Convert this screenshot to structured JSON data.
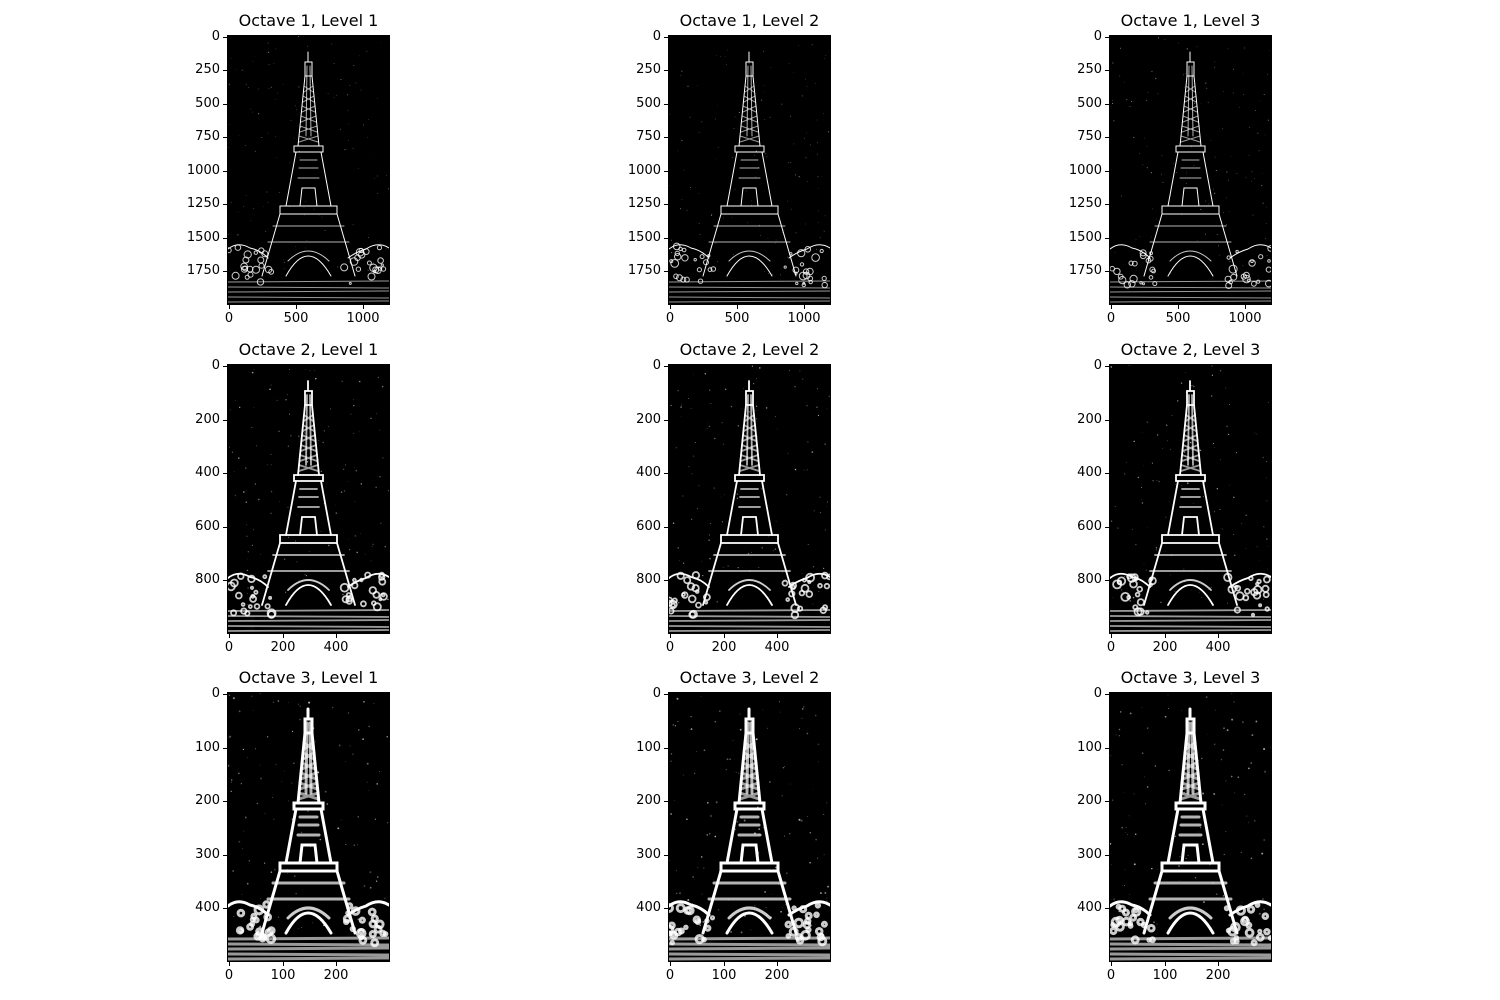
{
  "figure": {
    "panels": [
      {
        "title": "Octave 1, Level 1",
        "octave": 1,
        "level": 1,
        "y_ticks": [
          "0",
          "250",
          "500",
          "750",
          "1000",
          "1250",
          "1500",
          "1750"
        ],
        "x_ticks": [
          "0",
          "500",
          "1000"
        ]
      },
      {
        "title": "Octave 1, Level 2",
        "octave": 1,
        "level": 2,
        "y_ticks": [
          "0",
          "250",
          "500",
          "750",
          "1000",
          "1250",
          "1500",
          "1750"
        ],
        "x_ticks": [
          "0",
          "500",
          "1000"
        ]
      },
      {
        "title": "Octave 1, Level 3",
        "octave": 1,
        "level": 3,
        "y_ticks": [
          "0",
          "250",
          "500",
          "750",
          "1000",
          "1250",
          "1500",
          "1750"
        ],
        "x_ticks": [
          "0",
          "500",
          "1000"
        ]
      },
      {
        "title": "Octave 2, Level 1",
        "octave": 2,
        "level": 1,
        "y_ticks": [
          "0",
          "200",
          "400",
          "600",
          "800"
        ],
        "x_ticks": [
          "0",
          "200",
          "400"
        ]
      },
      {
        "title": "Octave 2, Level 2",
        "octave": 2,
        "level": 2,
        "y_ticks": [
          "0",
          "200",
          "400",
          "600",
          "800"
        ],
        "x_ticks": [
          "0",
          "200",
          "400"
        ]
      },
      {
        "title": "Octave 2, Level 3",
        "octave": 2,
        "level": 3,
        "y_ticks": [
          "0",
          "200",
          "400",
          "600",
          "800"
        ],
        "x_ticks": [
          "0",
          "200",
          "400"
        ]
      },
      {
        "title": "Octave 3, Level 1",
        "octave": 3,
        "level": 1,
        "y_ticks": [
          "0",
          "100",
          "200",
          "300",
          "400"
        ],
        "x_ticks": [
          "0",
          "100",
          "200"
        ]
      },
      {
        "title": "Octave 3, Level 2",
        "octave": 3,
        "level": 2,
        "y_ticks": [
          "0",
          "100",
          "200",
          "300",
          "400"
        ],
        "x_ticks": [
          "0",
          "100",
          "200"
        ]
      },
      {
        "title": "Octave 3, Level 3",
        "octave": 3,
        "level": 3,
        "y_ticks": [
          "0",
          "100",
          "200",
          "300",
          "400"
        ],
        "x_ticks": [
          "0",
          "100",
          "200"
        ]
      }
    ],
    "image_content": "eiffel-tower-edge-map",
    "colors": {
      "background": "#000000",
      "edges": "#ffffff",
      "page": "#ffffff"
    }
  }
}
